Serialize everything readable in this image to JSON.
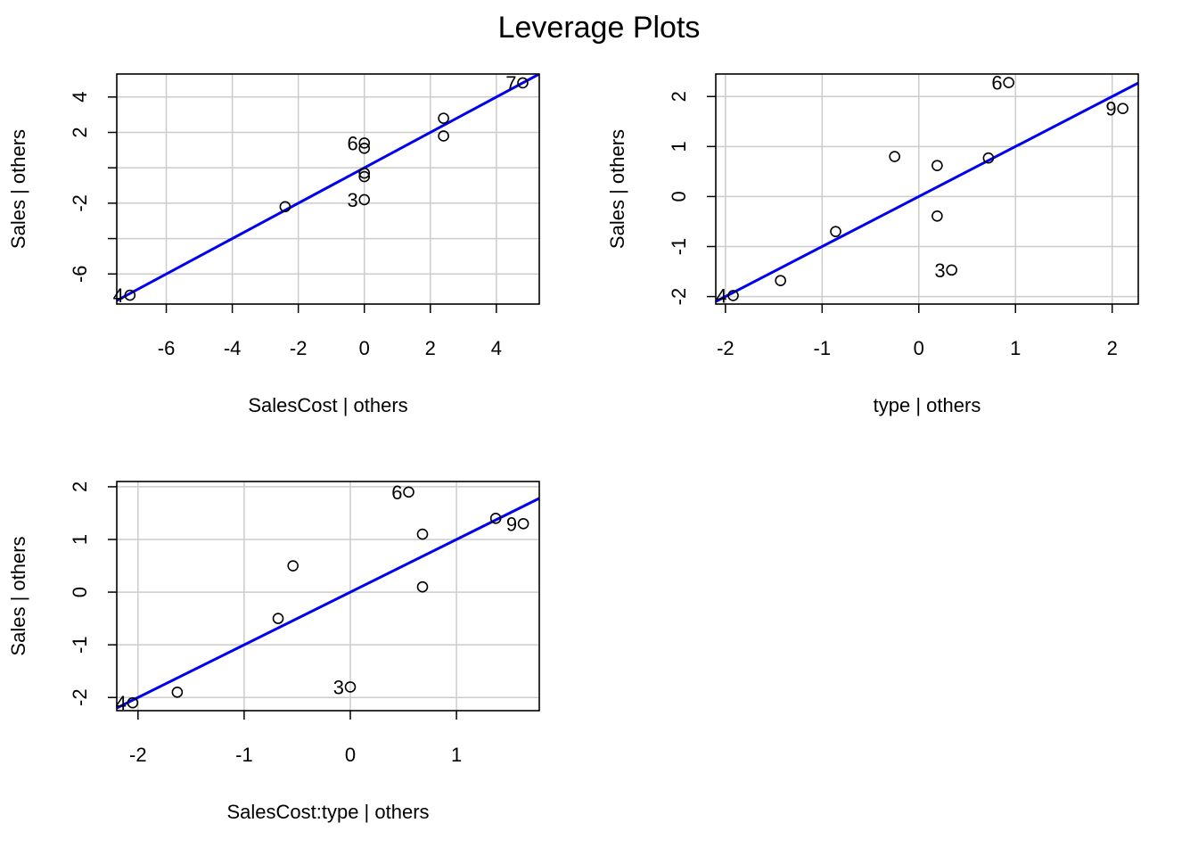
{
  "title": "Leverage Plots",
  "colors": {
    "fit_line": "#0000ee",
    "grid": "#cccccc",
    "points": "#000000"
  },
  "chart_data": [
    {
      "type": "scatter",
      "xlabel": "SalesCost | others",
      "ylabel": "Sales  | others",
      "xlim": [
        -7.5,
        5.3
      ],
      "ylim": [
        -7.7,
        5.3
      ],
      "xticks": [
        -6,
        -4,
        -2,
        0,
        2,
        4
      ],
      "yticks": [
        -6,
        -2,
        2,
        4
      ],
      "xgrid": [
        -6,
        -4,
        -2,
        0,
        2,
        4
      ],
      "ygrid": [
        -6,
        -4,
        -2,
        0,
        2,
        4
      ],
      "grid": true,
      "fit_line": {
        "slope": 1,
        "intercept": 0
      },
      "points": [
        {
          "x": -7.1,
          "y": -7.2,
          "label": "4"
        },
        {
          "x": -2.4,
          "y": -2.2,
          "label": ""
        },
        {
          "x": 0,
          "y": 1.4,
          "label": "6"
        },
        {
          "x": 0,
          "y": 1.1,
          "label": ""
        },
        {
          "x": 0,
          "y": -0.3,
          "label": ""
        },
        {
          "x": 0,
          "y": -0.5,
          "label": ""
        },
        {
          "x": 0,
          "y": -1.8,
          "label": "3"
        },
        {
          "x": 2.4,
          "y": 2.8,
          "label": ""
        },
        {
          "x": 2.4,
          "y": 1.8,
          "label": ""
        },
        {
          "x": 4.8,
          "y": 4.8,
          "label": "7"
        }
      ]
    },
    {
      "type": "scatter",
      "xlabel": "type | others",
      "ylabel": "Sales  | others",
      "xlim": [
        -2.1,
        2.27
      ],
      "ylim": [
        -2.15,
        2.45
      ],
      "xticks": [
        -2,
        -1,
        0,
        1,
        2
      ],
      "yticks": [
        -2,
        -1,
        0,
        1,
        2
      ],
      "xgrid": [
        -2,
        -1,
        0,
        1,
        2
      ],
      "ygrid": [
        -2,
        -1,
        0,
        1,
        2
      ],
      "grid": true,
      "fit_line": {
        "slope": 1,
        "intercept": 0
      },
      "points": [
        {
          "x": -1.92,
          "y": -1.98,
          "label": "4"
        },
        {
          "x": -1.43,
          "y": -1.68,
          "label": ""
        },
        {
          "x": -0.86,
          "y": -0.7,
          "label": ""
        },
        {
          "x": -0.25,
          "y": 0.8,
          "label": ""
        },
        {
          "x": 0.19,
          "y": 0.62,
          "label": ""
        },
        {
          "x": 0.19,
          "y": -0.39,
          "label": ""
        },
        {
          "x": 0.34,
          "y": -1.47,
          "label": "3"
        },
        {
          "x": 0.72,
          "y": 0.77,
          "label": ""
        },
        {
          "x": 0.93,
          "y": 2.28,
          "label": "6"
        },
        {
          "x": 2.11,
          "y": 1.76,
          "label": "9"
        }
      ]
    },
    {
      "type": "scatter",
      "xlabel": "SalesCost:type | others",
      "ylabel": "Sales  | others",
      "xlim": [
        -2.2,
        1.78
      ],
      "ylim": [
        -2.25,
        2.1
      ],
      "xticks": [
        -2,
        -1,
        0,
        1
      ],
      "yticks": [
        -2,
        -1,
        0,
        1,
        2
      ],
      "xgrid": [
        -2,
        -1,
        0,
        1
      ],
      "ygrid": [
        -2,
        -1,
        0,
        1,
        2
      ],
      "grid": true,
      "fit_line": {
        "slope": 1,
        "intercept": 0
      },
      "points": [
        {
          "x": -2.05,
          "y": -2.1,
          "label": "4"
        },
        {
          "x": -1.63,
          "y": -1.9,
          "label": ""
        },
        {
          "x": -0.68,
          "y": -0.5,
          "label": ""
        },
        {
          "x": -0.54,
          "y": 0.5,
          "label": ""
        },
        {
          "x": 0.0,
          "y": -1.8,
          "label": "3"
        },
        {
          "x": 0.55,
          "y": 1.9,
          "label": "6"
        },
        {
          "x": 0.68,
          "y": 1.1,
          "label": ""
        },
        {
          "x": 0.68,
          "y": 0.1,
          "label": ""
        },
        {
          "x": 1.37,
          "y": 1.4,
          "label": ""
        },
        {
          "x": 1.63,
          "y": 1.3,
          "label": "9"
        }
      ]
    }
  ]
}
